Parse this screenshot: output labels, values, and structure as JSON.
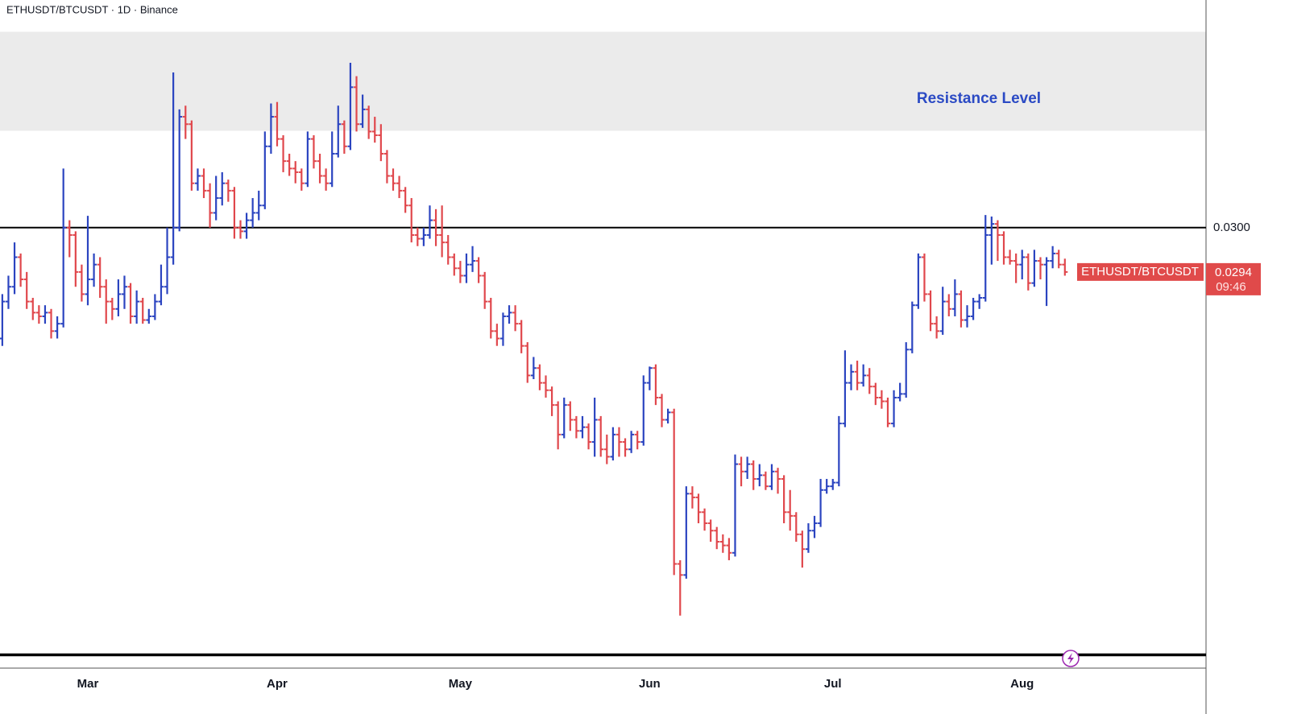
{
  "chart_data": {
    "type": "ohlc",
    "title": "ETHUSDT/BTCUSDT · 1D · Binance",
    "symbol": "ETHUSDT/BTCUSDT",
    "categories": [
      null,
      null,
      null,
      null,
      null,
      null,
      null,
      null,
      null,
      null,
      null,
      null,
      null,
      null,
      null,
      "Mar",
      null,
      null,
      null,
      null,
      null,
      null,
      null,
      null,
      null,
      null,
      null,
      null,
      null,
      null,
      null,
      null,
      null,
      null,
      null,
      null,
      null,
      null,
      null,
      null,
      null,
      null,
      null,
      null,
      null,
      null,
      "Apr",
      null,
      null,
      null,
      null,
      null,
      null,
      null,
      null,
      null,
      null,
      null,
      null,
      null,
      null,
      null,
      null,
      null,
      null,
      null,
      null,
      null,
      null,
      null,
      null,
      null,
      null,
      null,
      null,
      null,
      "May",
      null,
      null,
      null,
      null,
      null,
      null,
      null,
      null,
      null,
      null,
      null,
      null,
      null,
      null,
      null,
      null,
      null,
      null,
      null,
      null,
      null,
      null,
      null,
      null,
      null,
      null,
      null,
      null,
      null,
      null,
      "Jun",
      null,
      null,
      null,
      null,
      null,
      null,
      null,
      null,
      null,
      null,
      null,
      null,
      null,
      null,
      null,
      null,
      null,
      null,
      null,
      null,
      null,
      null,
      null,
      null,
      null,
      null,
      null,
      null,
      null,
      "Jul",
      null,
      null,
      null,
      null,
      null,
      null,
      null,
      null,
      null,
      null,
      null,
      null,
      null,
      null,
      null,
      null,
      null,
      null,
      null,
      null,
      null,
      null,
      null,
      null,
      null,
      null,
      null,
      null,
      null,
      null,
      "Aug",
      null,
      null,
      null,
      null,
      null,
      null,
      null
    ],
    "ohlc": [
      [
        0.0283,
        0.0287,
        0.0279,
        0.0285
      ],
      [
        0.0285,
        0.0291,
        0.0284,
        0.029
      ],
      [
        0.029,
        0.02935,
        0.0289,
        0.0292
      ],
      [
        0.0292,
        0.0298,
        0.0291,
        0.0296
      ],
      [
        0.0296,
        0.02965,
        0.0292,
        0.0293
      ],
      [
        0.0293,
        0.0294,
        0.0289,
        0.029
      ],
      [
        0.029,
        0.02905,
        0.02875,
        0.02885
      ],
      [
        0.02885,
        0.02895,
        0.0287,
        0.0288
      ],
      [
        0.0288,
        0.02895,
        0.0287,
        0.02885
      ],
      [
        0.02885,
        0.0289,
        0.0285,
        0.0286
      ],
      [
        0.0286,
        0.0288,
        0.0285,
        0.0287
      ],
      [
        0.0287,
        0.0308,
        0.02865,
        0.03
      ],
      [
        0.03,
        0.0301,
        0.0296,
        0.0299
      ],
      [
        0.0299,
        0.02995,
        0.0292,
        0.0294
      ],
      [
        0.0294,
        0.0295,
        0.029,
        0.0291
      ],
      [
        0.0291,
        0.03016,
        0.02895,
        0.0293
      ],
      [
        0.0293,
        0.02965,
        0.0292,
        0.0295
      ],
      [
        0.0295,
        0.0296,
        0.02905,
        0.0292
      ],
      [
        0.0292,
        0.0293,
        0.0287,
        0.029
      ],
      [
        0.029,
        0.02905,
        0.02875,
        0.0289
      ],
      [
        0.0289,
        0.0293,
        0.0288,
        0.0291
      ],
      [
        0.0291,
        0.02935,
        0.0289,
        0.0292
      ],
      [
        0.0292,
        0.02925,
        0.0287,
        0.0288
      ],
      [
        0.0288,
        0.02915,
        0.0287,
        0.029
      ],
      [
        0.029,
        0.02905,
        0.0287,
        0.02875
      ],
      [
        0.02875,
        0.0289,
        0.0287,
        0.0288
      ],
      [
        0.0288,
        0.0291,
        0.02875,
        0.029
      ],
      [
        0.029,
        0.0295,
        0.02895,
        0.0292
      ],
      [
        0.0292,
        0.03,
        0.0291,
        0.0296
      ],
      [
        0.0296,
        0.0321,
        0.0295,
        0.03
      ],
      [
        0.03,
        0.0316,
        0.02995,
        0.0315
      ],
      [
        0.0315,
        0.03165,
        0.0312,
        0.0314
      ],
      [
        0.0314,
        0.03145,
        0.0305,
        0.0306
      ],
      [
        0.0306,
        0.0308,
        0.0305,
        0.0307
      ],
      [
        0.0307,
        0.0308,
        0.0304,
        0.0305
      ],
      [
        0.0305,
        0.0306,
        0.03,
        0.0302
      ],
      [
        0.0302,
        0.0307,
        0.0301,
        0.0304
      ],
      [
        0.0304,
        0.03075,
        0.0303,
        0.0306
      ],
      [
        0.0306,
        0.03065,
        0.03035,
        0.0305
      ],
      [
        0.0305,
        0.03055,
        0.02985,
        0.03
      ],
      [
        0.03,
        0.0301,
        0.02985,
        0.02995
      ],
      [
        0.02995,
        0.0302,
        0.02985,
        0.0301
      ],
      [
        0.0301,
        0.0304,
        0.03,
        0.0302
      ],
      [
        0.0302,
        0.0305,
        0.0301,
        0.0303
      ],
      [
        0.0303,
        0.0313,
        0.03025,
        0.0311
      ],
      [
        0.0311,
        0.03168,
        0.031,
        0.0315
      ],
      [
        0.0315,
        0.0317,
        0.0311,
        0.0312
      ],
      [
        0.0312,
        0.03125,
        0.03075,
        0.0309
      ],
      [
        0.0309,
        0.031,
        0.0307,
        0.0308
      ],
      [
        0.0308,
        0.0309,
        0.0306,
        0.03075
      ],
      [
        0.03075,
        0.0308,
        0.0305,
        0.0306
      ],
      [
        0.0306,
        0.0313,
        0.03055,
        0.0312
      ],
      [
        0.0312,
        0.03125,
        0.0308,
        0.0309
      ],
      [
        0.0309,
        0.031,
        0.0306,
        0.0307
      ],
      [
        0.0307,
        0.0308,
        0.0305,
        0.0306
      ],
      [
        0.0306,
        0.0313,
        0.03055,
        0.031
      ],
      [
        0.031,
        0.03165,
        0.03095,
        0.0314
      ],
      [
        0.0314,
        0.03145,
        0.031,
        0.0311
      ],
      [
        0.0311,
        0.03223,
        0.03105,
        0.0319
      ],
      [
        0.0319,
        0.03205,
        0.0313,
        0.0314
      ],
      [
        0.0314,
        0.0318,
        0.03135,
        0.0316
      ],
      [
        0.0316,
        0.03165,
        0.0312,
        0.0313
      ],
      [
        0.0313,
        0.0315,
        0.03115,
        0.03125
      ],
      [
        0.03125,
        0.0314,
        0.0309,
        0.031
      ],
      [
        0.031,
        0.03105,
        0.0306,
        0.0307
      ],
      [
        0.0307,
        0.0308,
        0.0305,
        0.0306
      ],
      [
        0.0306,
        0.0307,
        0.0304,
        0.0305
      ],
      [
        0.0305,
        0.03055,
        0.0302,
        0.0303
      ],
      [
        0.0303,
        0.0304,
        0.0298,
        0.0299
      ],
      [
        0.0299,
        0.03,
        0.02975,
        0.02985
      ],
      [
        0.02985,
        0.03,
        0.02975,
        0.0299
      ],
      [
        0.0299,
        0.0303,
        0.02985,
        0.0301
      ],
      [
        0.0301,
        0.03025,
        0.02975,
        0.0299
      ],
      [
        0.0299,
        0.0303,
        0.0296,
        0.0298
      ],
      [
        0.0298,
        0.0299,
        0.0295,
        0.0296
      ],
      [
        0.0296,
        0.02965,
        0.02935,
        0.02945
      ],
      [
        0.02945,
        0.02955,
        0.02925,
        0.02935
      ],
      [
        0.02935,
        0.02965,
        0.02925,
        0.0295
      ],
      [
        0.0295,
        0.02975,
        0.0294,
        0.02955
      ],
      [
        0.02955,
        0.0296,
        0.02925,
        0.02935
      ],
      [
        0.02935,
        0.0294,
        0.0289,
        0.029
      ],
      [
        0.029,
        0.02905,
        0.0285,
        0.0286
      ],
      [
        0.0286,
        0.0287,
        0.0284,
        0.0285
      ],
      [
        0.0285,
        0.02885,
        0.0284,
        0.0288
      ],
      [
        0.0288,
        0.02895,
        0.0287,
        0.02885
      ],
      [
        0.02885,
        0.02895,
        0.0286,
        0.0287
      ],
      [
        0.0287,
        0.02875,
        0.0283,
        0.0284
      ],
      [
        0.0284,
        0.02845,
        0.0279,
        0.028
      ],
      [
        0.028,
        0.02825,
        0.02795,
        0.0281
      ],
      [
        0.0281,
        0.02815,
        0.0278,
        0.0279
      ],
      [
        0.0279,
        0.028,
        0.0277,
        0.0278
      ],
      [
        0.0278,
        0.02785,
        0.02745,
        0.0276
      ],
      [
        0.0276,
        0.02765,
        0.027,
        0.0272
      ],
      [
        0.0272,
        0.0277,
        0.02715,
        0.0276
      ],
      [
        0.0276,
        0.02765,
        0.02725,
        0.0274
      ],
      [
        0.0274,
        0.02745,
        0.02715,
        0.02725
      ],
      [
        0.02725,
        0.02745,
        0.02715,
        0.0273
      ],
      [
        0.0273,
        0.02735,
        0.027,
        0.0271
      ],
      [
        0.0271,
        0.0277,
        0.0269,
        0.0274
      ],
      [
        0.0274,
        0.02745,
        0.0269,
        0.027
      ],
      [
        0.027,
        0.0272,
        0.0268,
        0.0269
      ],
      [
        0.0269,
        0.0273,
        0.02685,
        0.0272
      ],
      [
        0.0272,
        0.0273,
        0.0269,
        0.0271
      ],
      [
        0.0271,
        0.02715,
        0.0269,
        0.027
      ],
      [
        0.027,
        0.02725,
        0.02695,
        0.0272
      ],
      [
        0.0272,
        0.02725,
        0.027,
        0.0271
      ],
      [
        0.0271,
        0.028,
        0.02705,
        0.0279
      ],
      [
        0.0279,
        0.02812,
        0.0278,
        0.0281
      ],
      [
        0.0281,
        0.02815,
        0.0276,
        0.0277
      ],
      [
        0.0277,
        0.02775,
        0.0273,
        0.0274
      ],
      [
        0.0274,
        0.02755,
        0.02735,
        0.0275
      ],
      [
        0.0275,
        0.02755,
        0.0253,
        0.02545
      ],
      [
        0.02545,
        0.0255,
        0.02475,
        0.0253
      ],
      [
        0.0253,
        0.0265,
        0.02525,
        0.0264
      ],
      [
        0.0264,
        0.0265,
        0.0262,
        0.02635
      ],
      [
        0.02635,
        0.0264,
        0.026,
        0.02615
      ],
      [
        0.02615,
        0.0262,
        0.0259,
        0.026
      ],
      [
        0.026,
        0.02605,
        0.02575,
        0.0259
      ],
      [
        0.0259,
        0.02595,
        0.02565,
        0.02575
      ],
      [
        0.02575,
        0.02585,
        0.0256,
        0.0257
      ],
      [
        0.0257,
        0.0258,
        0.0255,
        0.0256
      ],
      [
        0.0256,
        0.02693,
        0.02555,
        0.0268
      ],
      [
        0.0268,
        0.0269,
        0.0265,
        0.0267
      ],
      [
        0.0267,
        0.0269,
        0.0266,
        0.0268
      ],
      [
        0.0268,
        0.02685,
        0.02645,
        0.0266
      ],
      [
        0.0266,
        0.0268,
        0.0265,
        0.02665
      ],
      [
        0.02665,
        0.0267,
        0.02645,
        0.0265
      ],
      [
        0.0265,
        0.0268,
        0.02645,
        0.0267
      ],
      [
        0.0267,
        0.02675,
        0.0264,
        0.0266
      ],
      [
        0.0266,
        0.02665,
        0.026,
        0.02615
      ],
      [
        0.02615,
        0.02645,
        0.0259,
        0.0261
      ],
      [
        0.0261,
        0.02615,
        0.02575,
        0.02585
      ],
      [
        0.02585,
        0.0259,
        0.0254,
        0.02565
      ],
      [
        0.02565,
        0.026,
        0.0256,
        0.0259
      ],
      [
        0.0259,
        0.0261,
        0.0258,
        0.026
      ],
      [
        0.026,
        0.0266,
        0.02595,
        0.02645
      ],
      [
        0.02645,
        0.0266,
        0.0264,
        0.0265
      ],
      [
        0.0265,
        0.0266,
        0.02645,
        0.02655
      ],
      [
        0.02655,
        0.02745,
        0.0265,
        0.02735
      ],
      [
        0.02735,
        0.02834,
        0.0273,
        0.0279
      ],
      [
        0.0279,
        0.02815,
        0.0278,
        0.02805
      ],
      [
        0.02805,
        0.0282,
        0.0278,
        0.0279
      ],
      [
        0.0279,
        0.02815,
        0.02785,
        0.028
      ],
      [
        0.028,
        0.0281,
        0.02775,
        0.02785
      ],
      [
        0.02785,
        0.0279,
        0.0276,
        0.0277
      ],
      [
        0.0277,
        0.0278,
        0.02755,
        0.02765
      ],
      [
        0.02765,
        0.0277,
        0.0273,
        0.02735
      ],
      [
        0.02735,
        0.0278,
        0.0273,
        0.0277
      ],
      [
        0.0277,
        0.0279,
        0.02765,
        0.02775
      ],
      [
        0.02775,
        0.02845,
        0.0277,
        0.02835
      ],
      [
        0.02835,
        0.029,
        0.0283,
        0.02895
      ],
      [
        0.02895,
        0.02965,
        0.0289,
        0.0296
      ],
      [
        0.0296,
        0.02965,
        0.029,
        0.0291
      ],
      [
        0.0291,
        0.02915,
        0.0286,
        0.0287
      ],
      [
        0.0287,
        0.0288,
        0.0285,
        0.0286
      ],
      [
        0.0286,
        0.0292,
        0.02855,
        0.029
      ],
      [
        0.029,
        0.0291,
        0.0288,
        0.0289
      ],
      [
        0.0289,
        0.0293,
        0.0288,
        0.0291
      ],
      [
        0.0291,
        0.02915,
        0.02865,
        0.02875
      ],
      [
        0.02875,
        0.02895,
        0.02865,
        0.0288
      ],
      [
        0.0288,
        0.02905,
        0.02875,
        0.029
      ],
      [
        0.029,
        0.0291,
        0.0289,
        0.02905
      ],
      [
        0.02905,
        0.03017,
        0.029,
        0.0299
      ],
      [
        0.0299,
        0.03015,
        0.0295,
        0.03005
      ],
      [
        0.03005,
        0.0301,
        0.02955,
        0.0299
      ],
      [
        0.0299,
        0.02995,
        0.0295,
        0.0296
      ],
      [
        0.0296,
        0.0297,
        0.0295,
        0.02955
      ],
      [
        0.02955,
        0.02965,
        0.02925,
        0.0295
      ],
      [
        0.0295,
        0.0297,
        0.0293,
        0.0296
      ],
      [
        0.0296,
        0.02965,
        0.02915,
        0.02925
      ],
      [
        0.02925,
        0.0297,
        0.0292,
        0.02955
      ],
      [
        0.02955,
        0.0296,
        0.0293,
        0.0295
      ],
      [
        0.0295,
        0.0296,
        0.02894,
        0.02955
      ],
      [
        0.02955,
        0.02975,
        0.02945,
        0.02965
      ],
      [
        0.02965,
        0.0297,
        0.02945,
        0.0295
      ],
      [
        0.0295,
        0.02958,
        0.02935,
        0.0294
      ]
    ],
    "up_color": "#2b44c0",
    "down_color": "#e0474c",
    "ylim": [
      0.02404,
      0.03308
    ],
    "yticks": [
      {
        "value": 0.03,
        "label": "0.0300"
      }
    ],
    "lines": [
      0.03,
      0.02422
    ],
    "zones": [
      {
        "label": "Resistance Level",
        "from": 0.03131,
        "to": 0.03265,
        "color": "#ebebeb"
      }
    ],
    "last_price": 0.0294,
    "countdown": "09:46",
    "last_color": "#e04a4a"
  }
}
